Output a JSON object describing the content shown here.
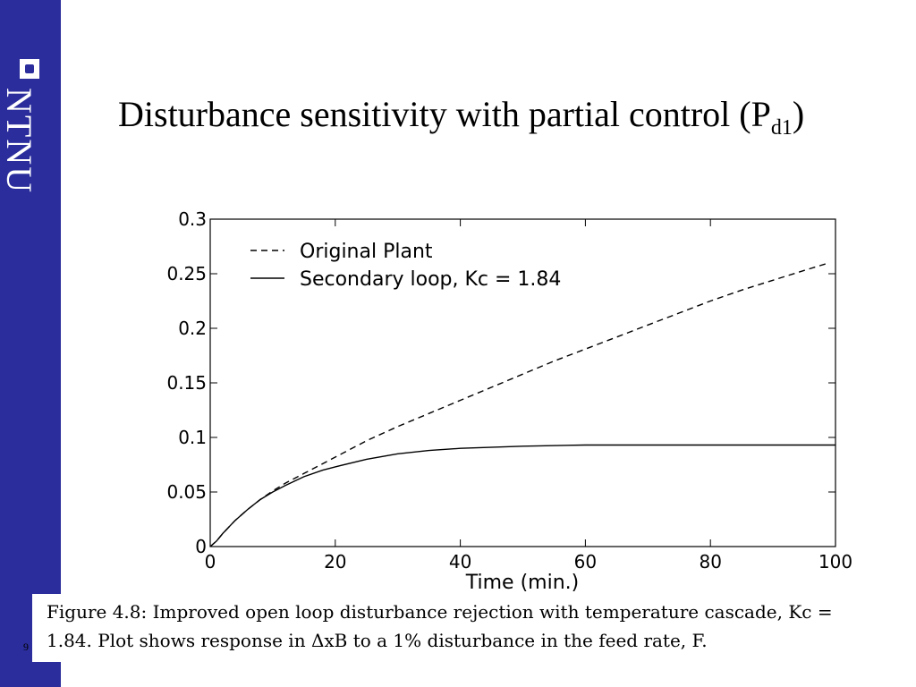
{
  "sidebar": {
    "brand_text": "NTNU",
    "color": "#2b2d9c"
  },
  "slide": {
    "title_main": "Disturbance sensitivity with partial control (P",
    "title_sub": "d1",
    "title_end": ")",
    "page_number": "9"
  },
  "caption": {
    "line1": "Figure 4.8: Improved open loop disturbance rejection with temperature cascade, Kc =",
    "line2": "1.84. Plot shows response in ΔxB to a 1% disturbance in the feed rate, F."
  },
  "chart_data": {
    "type": "line",
    "title": "",
    "xlabel": "Time (min.)",
    "ylabel": "",
    "xlim": [
      0,
      100
    ],
    "ylim": [
      0,
      0.3
    ],
    "x_ticks": [
      0,
      20,
      40,
      60,
      80,
      100
    ],
    "x_tick_labels": [
      "0",
      "20",
      "40",
      "60",
      "80",
      "100"
    ],
    "y_ticks": [
      0,
      0.05,
      0.1,
      0.15,
      0.2,
      0.25,
      0.3
    ],
    "y_tick_labels": [
      "0",
      "0.05",
      "0.1",
      "0.15",
      "0.2",
      "0.25",
      "0.3"
    ],
    "grid": false,
    "legend_position": "top-left",
    "series": [
      {
        "name": "Original Plant",
        "style": "dashed",
        "x": [
          0,
          1,
          2,
          4,
          6,
          8,
          10,
          12,
          15,
          20,
          25,
          30,
          35,
          40,
          45,
          50,
          55,
          60,
          65,
          70,
          75,
          80,
          85,
          90,
          95,
          99
        ],
        "y": [
          0,
          0.005,
          0.012,
          0.024,
          0.034,
          0.043,
          0.051,
          0.058,
          0.067,
          0.082,
          0.097,
          0.11,
          0.122,
          0.134,
          0.146,
          0.158,
          0.17,
          0.181,
          0.192,
          0.203,
          0.214,
          0.225,
          0.235,
          0.244,
          0.253,
          0.26
        ]
      },
      {
        "name": "Secondary loop, Kc = 1.84",
        "style": "solid",
        "x": [
          0,
          1,
          2,
          4,
          6,
          8,
          10,
          12,
          15,
          18,
          20,
          25,
          30,
          35,
          40,
          50,
          60,
          70,
          80,
          90,
          100
        ],
        "y": [
          0,
          0.005,
          0.012,
          0.024,
          0.034,
          0.043,
          0.05,
          0.056,
          0.064,
          0.07,
          0.073,
          0.08,
          0.085,
          0.088,
          0.09,
          0.092,
          0.093,
          0.093,
          0.093,
          0.093,
          0.093
        ]
      }
    ]
  }
}
